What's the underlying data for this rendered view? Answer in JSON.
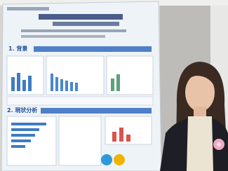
{
  "poster": {
    "sections": [
      "1. 背景",
      "2. 現状分析"
    ]
  }
}
